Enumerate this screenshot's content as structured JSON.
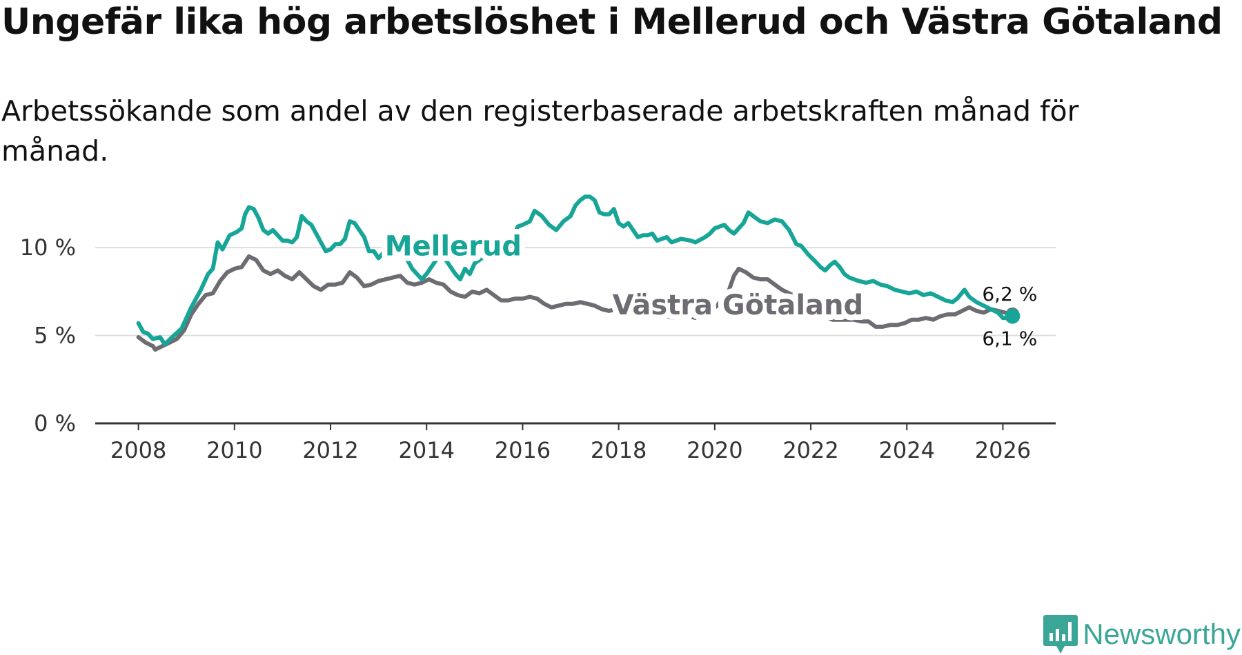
{
  "title": "Ungefär lika hög arbetslöshet i Mellerud och Västra Götaland",
  "subtitle": "Arbetssökande som andel av den registerbaserade arbetskraften månad för månad.",
  "brand": "Newsworthy",
  "colors": {
    "mellerud": "#17a598",
    "vg": "#6e6c72",
    "grid": "#dddddd",
    "axis": "#333333",
    "brand": "#3aa697"
  },
  "chart_data": {
    "type": "line",
    "title": "Ungefär lika hög arbetslöshet i Mellerud och Västra Götaland",
    "xlabel": "",
    "ylabel": "",
    "xlim": [
      2007.1,
      2027.1
    ],
    "ylim": [
      0,
      13.5
    ],
    "x_ticks": [
      2008,
      2010,
      2012,
      2014,
      2016,
      2018,
      2020,
      2022,
      2024,
      2026
    ],
    "x_tick_labels": [
      "2008",
      "2010",
      "2012",
      "2014",
      "2016",
      "2018",
      "2020",
      "2022",
      "2024",
      "2026"
    ],
    "y_ticks": [
      0,
      5,
      10
    ],
    "y_tick_labels": [
      "0 %",
      "5 %",
      "10 %"
    ],
    "grid": true,
    "end_labels": {
      "mellerud": "6,1 %",
      "vg": "6,2 %"
    },
    "series": [
      {
        "name": "Mellerud",
        "points": [
          [
            2008.0,
            5.7
          ],
          [
            2008.1,
            5.2
          ],
          [
            2008.2,
            5.1
          ],
          [
            2008.3,
            4.8
          ],
          [
            2008.45,
            4.9
          ],
          [
            2008.55,
            4.5
          ],
          [
            2008.7,
            4.9
          ],
          [
            2008.9,
            5.4
          ],
          [
            2009.1,
            6.6
          ],
          [
            2009.3,
            7.6
          ],
          [
            2009.45,
            8.5
          ],
          [
            2009.55,
            8.8
          ],
          [
            2009.65,
            10.3
          ],
          [
            2009.75,
            9.9
          ],
          [
            2009.9,
            10.7
          ],
          [
            2010.05,
            10.9
          ],
          [
            2010.15,
            11.1
          ],
          [
            2010.22,
            11.9
          ],
          [
            2010.3,
            12.3
          ],
          [
            2010.4,
            12.2
          ],
          [
            2010.5,
            11.7
          ],
          [
            2010.6,
            11.0
          ],
          [
            2010.7,
            10.8
          ],
          [
            2010.8,
            11.0
          ],
          [
            2010.9,
            10.7
          ],
          [
            2011.0,
            10.4
          ],
          [
            2011.1,
            10.4
          ],
          [
            2011.2,
            10.3
          ],
          [
            2011.3,
            10.6
          ],
          [
            2011.4,
            11.8
          ],
          [
            2011.5,
            11.5
          ],
          [
            2011.6,
            11.3
          ],
          [
            2011.7,
            10.8
          ],
          [
            2011.8,
            10.3
          ],
          [
            2011.9,
            9.8
          ],
          [
            2012.0,
            9.9
          ],
          [
            2012.1,
            10.2
          ],
          [
            2012.2,
            10.2
          ],
          [
            2012.3,
            10.5
          ],
          [
            2012.4,
            11.5
          ],
          [
            2012.5,
            11.4
          ],
          [
            2012.6,
            11.0
          ],
          [
            2012.7,
            10.6
          ],
          [
            2012.8,
            9.8
          ],
          [
            2012.9,
            9.8
          ],
          [
            2013.0,
            9.4
          ],
          [
            2013.1,
            9.7
          ],
          [
            2013.2,
            10.0
          ],
          [
            2013.3,
            9.5
          ],
          [
            2013.4,
            9.8
          ],
          [
            2013.5,
            10.0
          ],
          [
            2013.6,
            9.3
          ],
          [
            2013.7,
            8.8
          ],
          [
            2013.8,
            8.5
          ],
          [
            2013.9,
            8.2
          ],
          [
            2014.0,
            8.5
          ],
          [
            2014.1,
            8.9
          ],
          [
            2014.2,
            9.3
          ],
          [
            2014.3,
            9.6
          ],
          [
            2014.4,
            9.3
          ],
          [
            2014.5,
            8.9
          ],
          [
            2014.6,
            8.5
          ],
          [
            2014.7,
            8.2
          ],
          [
            2014.8,
            8.8
          ],
          [
            2014.9,
            8.5
          ],
          [
            2015.0,
            9.1
          ],
          [
            2015.2,
            9.5
          ],
          [
            2015.4,
            9.7
          ],
          [
            2015.6,
            9.9
          ],
          [
            2015.8,
            10.6
          ],
          [
            2015.9,
            11.2
          ],
          [
            2016.0,
            11.3
          ],
          [
            2016.15,
            11.5
          ],
          [
            2016.25,
            12.1
          ],
          [
            2016.4,
            11.8
          ],
          [
            2016.55,
            11.3
          ],
          [
            2016.7,
            11.0
          ],
          [
            2016.85,
            11.5
          ],
          [
            2017.0,
            11.8
          ],
          [
            2017.1,
            12.4
          ],
          [
            2017.2,
            12.7
          ],
          [
            2017.3,
            12.9
          ],
          [
            2017.4,
            12.9
          ],
          [
            2017.5,
            12.7
          ],
          [
            2017.6,
            12.0
          ],
          [
            2017.7,
            11.9
          ],
          [
            2017.8,
            11.9
          ],
          [
            2017.9,
            12.2
          ],
          [
            2018.0,
            11.4
          ],
          [
            2018.1,
            11.2
          ],
          [
            2018.2,
            11.4
          ],
          [
            2018.3,
            11.0
          ],
          [
            2018.4,
            10.6
          ],
          [
            2018.5,
            10.7
          ],
          [
            2018.6,
            10.7
          ],
          [
            2018.7,
            10.8
          ],
          [
            2018.8,
            10.4
          ],
          [
            2018.9,
            10.5
          ],
          [
            2019.0,
            10.6
          ],
          [
            2019.1,
            10.3
          ],
          [
            2019.3,
            10.5
          ],
          [
            2019.5,
            10.4
          ],
          [
            2019.6,
            10.3
          ],
          [
            2019.8,
            10.6
          ],
          [
            2019.9,
            10.8
          ],
          [
            2020.0,
            11.1
          ],
          [
            2020.2,
            11.3
          ],
          [
            2020.3,
            11.0
          ],
          [
            2020.4,
            10.8
          ],
          [
            2020.5,
            11.1
          ],
          [
            2020.6,
            11.4
          ],
          [
            2020.7,
            12.0
          ],
          [
            2020.8,
            11.8
          ],
          [
            2020.95,
            11.5
          ],
          [
            2021.1,
            11.4
          ],
          [
            2021.25,
            11.6
          ],
          [
            2021.4,
            11.5
          ],
          [
            2021.55,
            11.0
          ],
          [
            2021.7,
            10.2
          ],
          [
            2021.8,
            10.1
          ],
          [
            2021.95,
            9.6
          ],
          [
            2022.1,
            9.2
          ],
          [
            2022.2,
            8.9
          ],
          [
            2022.3,
            8.7
          ],
          [
            2022.4,
            9.0
          ],
          [
            2022.5,
            9.2
          ],
          [
            2022.6,
            8.9
          ],
          [
            2022.7,
            8.5
          ],
          [
            2022.8,
            8.3
          ],
          [
            2022.9,
            8.2
          ],
          [
            2023.0,
            8.1
          ],
          [
            2023.15,
            8.0
          ],
          [
            2023.3,
            8.1
          ],
          [
            2023.45,
            7.9
          ],
          [
            2023.6,
            7.8
          ],
          [
            2023.75,
            7.6
          ],
          [
            2023.9,
            7.5
          ],
          [
            2024.05,
            7.4
          ],
          [
            2024.2,
            7.5
          ],
          [
            2024.35,
            7.3
          ],
          [
            2024.5,
            7.4
          ],
          [
            2024.65,
            7.2
          ],
          [
            2024.8,
            7.0
          ],
          [
            2024.95,
            6.9
          ],
          [
            2025.05,
            7.1
          ],
          [
            2025.2,
            7.6
          ],
          [
            2025.3,
            7.2
          ],
          [
            2025.45,
            6.9
          ],
          [
            2025.6,
            6.7
          ],
          [
            2025.75,
            6.5
          ],
          [
            2025.9,
            6.3
          ],
          [
            2026.0,
            6.0
          ],
          [
            2026.1,
            6.0
          ],
          [
            2026.2,
            6.1
          ]
        ]
      },
      {
        "name": "Västra Götaland",
        "points": [
          [
            2008.0,
            4.9
          ],
          [
            2008.15,
            4.6
          ],
          [
            2008.3,
            4.4
          ],
          [
            2008.35,
            4.2
          ],
          [
            2008.5,
            4.4
          ],
          [
            2008.65,
            4.6
          ],
          [
            2008.8,
            4.8
          ],
          [
            2008.95,
            5.3
          ],
          [
            2009.1,
            6.2
          ],
          [
            2009.25,
            6.8
          ],
          [
            2009.4,
            7.3
          ],
          [
            2009.55,
            7.4
          ],
          [
            2009.7,
            8.1
          ],
          [
            2009.85,
            8.6
          ],
          [
            2010.0,
            8.8
          ],
          [
            2010.15,
            8.9
          ],
          [
            2010.3,
            9.5
          ],
          [
            2010.45,
            9.3
          ],
          [
            2010.6,
            8.7
          ],
          [
            2010.75,
            8.5
          ],
          [
            2010.9,
            8.7
          ],
          [
            2011.05,
            8.4
          ],
          [
            2011.2,
            8.2
          ],
          [
            2011.35,
            8.6
          ],
          [
            2011.5,
            8.2
          ],
          [
            2011.65,
            7.8
          ],
          [
            2011.8,
            7.6
          ],
          [
            2011.95,
            7.9
          ],
          [
            2012.1,
            7.9
          ],
          [
            2012.25,
            8.0
          ],
          [
            2012.4,
            8.6
          ],
          [
            2012.55,
            8.3
          ],
          [
            2012.7,
            7.8
          ],
          [
            2012.85,
            7.9
          ],
          [
            2013.0,
            8.1
          ],
          [
            2013.15,
            8.2
          ],
          [
            2013.3,
            8.3
          ],
          [
            2013.45,
            8.4
          ],
          [
            2013.6,
            8.0
          ],
          [
            2013.75,
            7.9
          ],
          [
            2013.9,
            8.0
          ],
          [
            2014.05,
            8.2
          ],
          [
            2014.2,
            8.0
          ],
          [
            2014.35,
            7.9
          ],
          [
            2014.5,
            7.5
          ],
          [
            2014.65,
            7.3
          ],
          [
            2014.8,
            7.2
          ],
          [
            2014.95,
            7.5
          ],
          [
            2015.1,
            7.4
          ],
          [
            2015.25,
            7.6
          ],
          [
            2015.4,
            7.3
          ],
          [
            2015.55,
            7.0
          ],
          [
            2015.7,
            7.0
          ],
          [
            2015.85,
            7.1
          ],
          [
            2016.0,
            7.1
          ],
          [
            2016.15,
            7.2
          ],
          [
            2016.3,
            7.1
          ],
          [
            2016.45,
            6.8
          ],
          [
            2016.6,
            6.6
          ],
          [
            2016.75,
            6.7
          ],
          [
            2016.9,
            6.8
          ],
          [
            2017.05,
            6.8
          ],
          [
            2017.2,
            6.9
          ],
          [
            2017.35,
            6.8
          ],
          [
            2017.5,
            6.7
          ],
          [
            2017.65,
            6.5
          ],
          [
            2017.8,
            6.4
          ],
          [
            2017.95,
            6.5
          ],
          [
            2018.1,
            6.5
          ],
          [
            2018.25,
            6.6
          ],
          [
            2018.4,
            6.4
          ],
          [
            2018.55,
            6.2
          ],
          [
            2018.7,
            6.3
          ],
          [
            2018.85,
            6.3
          ],
          [
            2019.0,
            6.1
          ],
          [
            2019.15,
            6.0
          ],
          [
            2019.3,
            6.2
          ],
          [
            2019.45,
            6.1
          ],
          [
            2019.6,
            6.0
          ],
          [
            2019.75,
            6.2
          ],
          [
            2019.9,
            6.4
          ],
          [
            2020.05,
            6.7
          ],
          [
            2020.2,
            7.2
          ],
          [
            2020.3,
            7.6
          ],
          [
            2020.4,
            8.4
          ],
          [
            2020.5,
            8.8
          ],
          [
            2020.65,
            8.6
          ],
          [
            2020.8,
            8.3
          ],
          [
            2020.95,
            8.2
          ],
          [
            2021.1,
            8.2
          ],
          [
            2021.25,
            7.9
          ],
          [
            2021.4,
            7.6
          ],
          [
            2021.55,
            7.4
          ],
          [
            2021.7,
            7.2
          ],
          [
            2021.85,
            7.0
          ],
          [
            2022.0,
            6.7
          ],
          [
            2022.15,
            6.4
          ],
          [
            2022.3,
            6.1
          ],
          [
            2022.45,
            5.9
          ],
          [
            2022.6,
            5.9
          ],
          [
            2022.75,
            5.9
          ],
          [
            2022.9,
            5.9
          ],
          [
            2023.05,
            5.8
          ],
          [
            2023.2,
            5.8
          ],
          [
            2023.35,
            5.5
          ],
          [
            2023.5,
            5.5
          ],
          [
            2023.65,
            5.6
          ],
          [
            2023.8,
            5.6
          ],
          [
            2023.95,
            5.7
          ],
          [
            2024.1,
            5.9
          ],
          [
            2024.25,
            5.9
          ],
          [
            2024.4,
            6.0
          ],
          [
            2024.55,
            5.9
          ],
          [
            2024.7,
            6.1
          ],
          [
            2024.85,
            6.2
          ],
          [
            2025.0,
            6.2
          ],
          [
            2025.15,
            6.4
          ],
          [
            2025.3,
            6.6
          ],
          [
            2025.45,
            6.4
          ],
          [
            2025.6,
            6.3
          ],
          [
            2025.75,
            6.5
          ],
          [
            2025.9,
            6.4
          ],
          [
            2026.05,
            6.3
          ],
          [
            2026.2,
            6.2
          ]
        ]
      }
    ]
  }
}
